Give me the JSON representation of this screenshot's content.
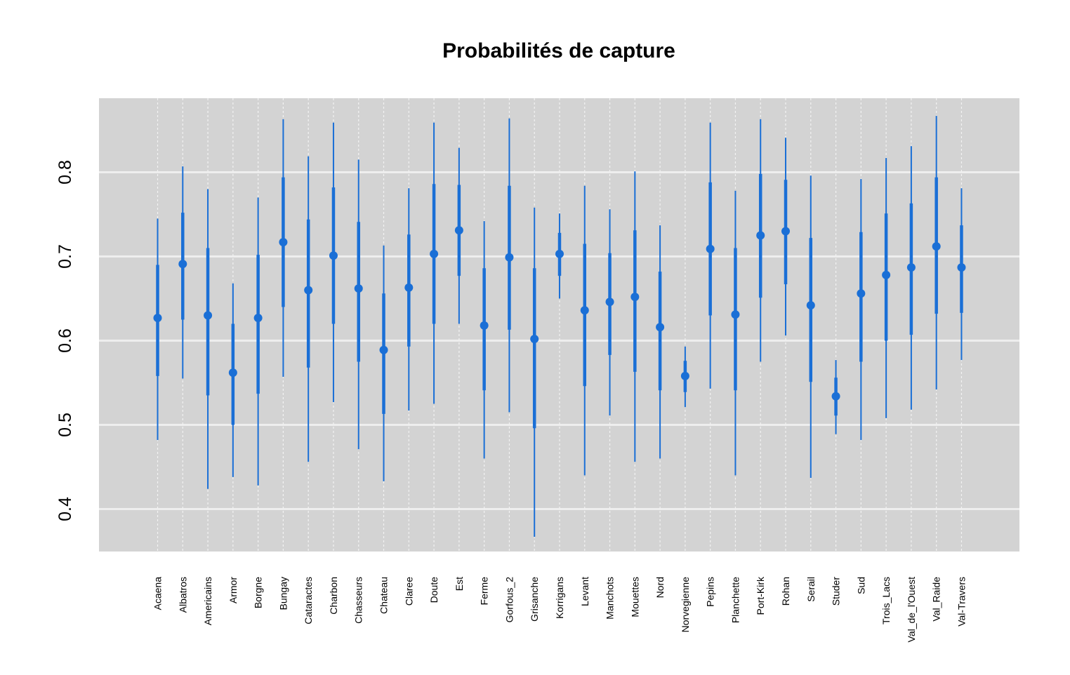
{
  "chart_data": {
    "type": "interval",
    "title": "Probabilités de capture",
    "xlabel": "",
    "ylabel": "",
    "ylim": [
      0.35,
      0.88
    ],
    "yticks": [
      "0.4",
      "0.5",
      "0.6",
      "0.7",
      "0.8"
    ],
    "grid": true,
    "colors": {
      "panel": "#d3d3d3",
      "gridline": "#eeeeee",
      "series": "#1a6fd6"
    },
    "series": [
      {
        "name": "",
        "categories": [
          "Acaena",
          "Albatros",
          "Americains",
          "Armor",
          "Borgne",
          "Bungay",
          "Cataractes",
          "Charbon",
          "Chasseurs",
          "Chateau",
          "Claree",
          "Doute",
          "Est",
          "Ferme",
          "Gorfous_2",
          "Grisanche",
          "Korrigans",
          "Levant",
          "Manchots",
          "Mouettes",
          "Nord",
          "Norvegienne",
          "Pepins",
          "Planchette",
          "Port-Kirk",
          "Rohan",
          "Serail",
          "Studer",
          "Sud",
          "Trois_Lacs",
          "Val_de_l'Ouest",
          "Val_Raide",
          "Val-Travers"
        ],
        "estimate": [
          0.627,
          0.691,
          0.63,
          0.562,
          0.627,
          0.717,
          0.66,
          0.701,
          0.662,
          0.589,
          0.663,
          0.703,
          0.731,
          0.618,
          0.699,
          0.602,
          0.703,
          0.636,
          0.646,
          0.652,
          0.616,
          0.558,
          0.709,
          0.631,
          0.725,
          0.73,
          0.642,
          0.534,
          0.656,
          0.678,
          0.687,
          0.712,
          0.687
        ],
        "inner_low": [
          0.558,
          0.625,
          0.535,
          0.5,
          0.537,
          0.64,
          0.568,
          0.62,
          0.575,
          0.513,
          0.593,
          0.62,
          0.677,
          0.541,
          0.613,
          0.496,
          0.677,
          0.546,
          0.583,
          0.563,
          0.541,
          0.539,
          0.63,
          0.541,
          0.651,
          0.667,
          0.551,
          0.511,
          0.575,
          0.6,
          0.607,
          0.632,
          0.633
        ],
        "inner_high": [
          0.69,
          0.752,
          0.71,
          0.62,
          0.702,
          0.794,
          0.744,
          0.782,
          0.741,
          0.656,
          0.726,
          0.786,
          0.785,
          0.686,
          0.784,
          0.686,
          0.728,
          0.715,
          0.704,
          0.731,
          0.682,
          0.576,
          0.788,
          0.71,
          0.798,
          0.791,
          0.722,
          0.556,
          0.729,
          0.751,
          0.763,
          0.794,
          0.737
        ],
        "outer_low": [
          0.482,
          0.555,
          0.424,
          0.438,
          0.428,
          0.557,
          0.456,
          0.527,
          0.471,
          0.433,
          0.517,
          0.525,
          0.62,
          0.46,
          0.515,
          0.367,
          0.65,
          0.44,
          0.511,
          0.456,
          0.46,
          0.521,
          0.543,
          0.44,
          0.575,
          0.606,
          0.437,
          0.489,
          0.482,
          0.508,
          0.518,
          0.542,
          0.577
        ],
        "outer_high": [
          0.745,
          0.807,
          0.78,
          0.668,
          0.77,
          0.863,
          0.819,
          0.859,
          0.815,
          0.713,
          0.781,
          0.859,
          0.829,
          0.742,
          0.864,
          0.758,
          0.751,
          0.784,
          0.756,
          0.801,
          0.737,
          0.593,
          0.859,
          0.778,
          0.863,
          0.841,
          0.796,
          0.577,
          0.792,
          0.817,
          0.831,
          0.867,
          0.781
        ]
      }
    ]
  }
}
